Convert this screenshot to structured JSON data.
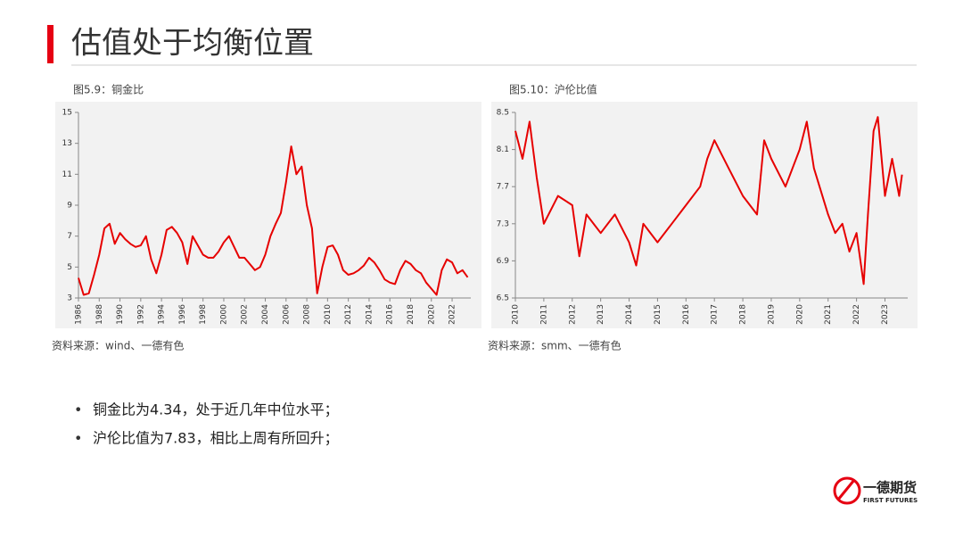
{
  "header": {
    "title": "估值处于均衡位置"
  },
  "chart_data": [
    {
      "type": "line",
      "title": "图5.9：铜金比",
      "source": "资料来源：wind、一德有色",
      "color": "#e60000",
      "x": [
        1986,
        1986.5,
        1987,
        1987.5,
        1988,
        1988.5,
        1989,
        1989.5,
        1990,
        1990.5,
        1991,
        1991.5,
        1992,
        1992.5,
        1993,
        1993.5,
        1994,
        1994.5,
        1995,
        1995.5,
        1996,
        1996.5,
        1997,
        1997.5,
        1998,
        1998.5,
        1999,
        1999.5,
        2000,
        2000.5,
        2001,
        2001.5,
        2002,
        2002.5,
        2003,
        2003.5,
        2004,
        2004.5,
        2005,
        2005.5,
        2006,
        2006.5,
        2007,
        2007.5,
        2008,
        2008.5,
        2009,
        2009.5,
        2010,
        2010.5,
        2011,
        2011.5,
        2012,
        2012.5,
        2013,
        2013.5,
        2014,
        2014.5,
        2015,
        2015.5,
        2016,
        2016.5,
        2017,
        2017.5,
        2018,
        2018.5,
        2019,
        2019.5,
        2020,
        2020.5,
        2021,
        2021.5,
        2022,
        2022.5,
        2023,
        2023.5
      ],
      "values": [
        4.3,
        3.2,
        3.3,
        4.5,
        5.8,
        7.5,
        7.8,
        6.5,
        7.2,
        6.8,
        6.5,
        6.3,
        6.4,
        7.0,
        5.5,
        4.6,
        5.8,
        7.4,
        7.6,
        7.2,
        6.6,
        5.2,
        7.0,
        6.4,
        5.8,
        5.6,
        5.6,
        6.0,
        6.6,
        7.0,
        6.3,
        5.6,
        5.6,
        5.2,
        4.8,
        5.0,
        5.8,
        7.0,
        7.8,
        8.5,
        10.5,
        12.8,
        11.0,
        11.5,
        9.0,
        7.5,
        3.3,
        5.0,
        6.3,
        6.4,
        5.8,
        4.8,
        4.5,
        4.6,
        4.8,
        5.1,
        5.6,
        5.3,
        4.8,
        4.2,
        4.0,
        3.9,
        4.8,
        5.4,
        5.2,
        4.8,
        4.6,
        4.0,
        3.6,
        3.2,
        4.8,
        5.5,
        5.3,
        4.6,
        4.8,
        4.34
      ],
      "xlim": [
        1986,
        2023.8
      ],
      "xticks": [
        1986,
        1988,
        1990,
        1992,
        1994,
        1996,
        1998,
        2000,
        2002,
        2004,
        2006,
        2008,
        2010,
        2012,
        2014,
        2016,
        2018,
        2020,
        2022
      ],
      "ylim": [
        3,
        15
      ],
      "yticks": [
        3,
        5,
        7,
        9,
        11,
        13,
        15
      ]
    },
    {
      "type": "line",
      "title": "图5.10：沪伦比值",
      "source": "资料来源：smm、一德有色",
      "color": "#e60000",
      "x": [
        2010,
        2010.25,
        2010.5,
        2010.75,
        2011,
        2011.5,
        2012,
        2012.25,
        2012.5,
        2013,
        2013.5,
        2014,
        2014.25,
        2014.5,
        2015,
        2015.5,
        2016,
        2016.5,
        2016.75,
        2017,
        2017.5,
        2018,
        2018.5,
        2018.75,
        2019,
        2019.5,
        2020,
        2020.25,
        2020.5,
        2021,
        2021.25,
        2021.5,
        2021.75,
        2022,
        2022.25,
        2022.4,
        2022.6,
        2022.75,
        2023,
        2023.25,
        2023.5,
        2023.6
      ],
      "values": [
        8.3,
        8.0,
        8.4,
        7.8,
        7.3,
        7.6,
        7.5,
        6.95,
        7.4,
        7.2,
        7.4,
        7.1,
        6.85,
        7.3,
        7.1,
        7.3,
        7.5,
        7.7,
        8.0,
        8.2,
        7.9,
        7.6,
        7.4,
        8.2,
        8.0,
        7.7,
        8.1,
        8.4,
        7.9,
        7.4,
        7.2,
        7.3,
        7.0,
        7.2,
        6.65,
        7.4,
        8.3,
        8.45,
        7.6,
        8.0,
        7.6,
        7.83
      ],
      "xlim": [
        2010,
        2023.8
      ],
      "xticks": [
        2010,
        2011,
        2012,
        2013,
        2014,
        2015,
        2016,
        2017,
        2018,
        2019,
        2020,
        2021,
        2022,
        2023
      ],
      "ylim": [
        6.5,
        8.5
      ],
      "yticks": [
        6.5,
        6.9,
        7.3,
        7.7,
        8.1,
        8.5
      ]
    }
  ],
  "bullets": [
    "铜金比为4.34，处于近几年中位水平；",
    "沪伦比值为7.83，相比上周有所回升；"
  ],
  "logo": {
    "name": "一德期货",
    "english": "FIRST FUTURES"
  }
}
